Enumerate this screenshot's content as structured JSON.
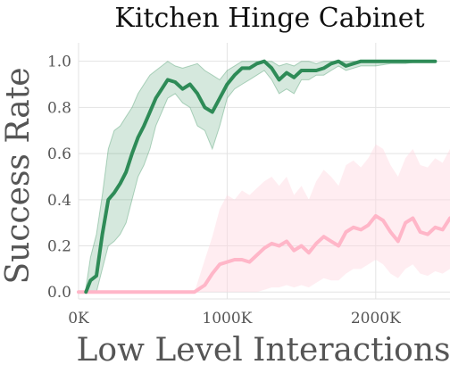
{
  "chart_data": {
    "type": "line",
    "title": "Kitchen Hinge Cabinet",
    "xlabel": "Low Level Interactions",
    "ylabel": "Success Rate",
    "xlim": [
      0,
      2500000
    ],
    "ylim": [
      -0.03,
      1.08
    ],
    "grid": true,
    "legend": "none",
    "x_ticks": [
      {
        "value": 0,
        "label": "0K"
      },
      {
        "value": 1000000,
        "label": "1000K"
      },
      {
        "value": 2000000,
        "label": "2000K"
      }
    ],
    "y_ticks": [
      {
        "value": 0.0,
        "label": "0.0"
      },
      {
        "value": 0.2,
        "label": "0.2"
      },
      {
        "value": 0.4,
        "label": "0.4"
      },
      {
        "value": 0.6,
        "label": "0.6"
      },
      {
        "value": 0.8,
        "label": "0.8"
      },
      {
        "value": 1.0,
        "label": "1.0"
      }
    ],
    "series": [
      {
        "color": "#2e8b57",
        "band_color": "#2e8b57",
        "x": [
          50000,
          80000,
          120000,
          160000,
          200000,
          240000,
          280000,
          320000,
          360000,
          400000,
          440000,
          480000,
          520000,
          560000,
          600000,
          650000,
          700000,
          750000,
          800000,
          850000,
          900000,
          950000,
          1000000,
          1050000,
          1100000,
          1150000,
          1200000,
          1250000,
          1300000,
          1350000,
          1400000,
          1450000,
          1500000,
          1550000,
          1600000,
          1650000,
          1700000,
          1750000,
          1800000,
          1900000,
          2000000,
          2100000,
          2200000,
          2300000,
          2400000
        ],
        "y": [
          0.0,
          0.05,
          0.07,
          0.25,
          0.4,
          0.43,
          0.47,
          0.52,
          0.6,
          0.67,
          0.72,
          0.78,
          0.84,
          0.88,
          0.92,
          0.91,
          0.88,
          0.9,
          0.86,
          0.8,
          0.78,
          0.84,
          0.9,
          0.94,
          0.97,
          0.97,
          0.99,
          1.0,
          0.97,
          0.92,
          0.95,
          0.93,
          0.96,
          0.96,
          0.96,
          0.97,
          0.99,
          1.0,
          0.98,
          1.0,
          1.0,
          1.0,
          1.0,
          1.0,
          1.0
        ],
        "y_lower": [
          0.0,
          0.0,
          0.0,
          0.1,
          0.2,
          0.22,
          0.25,
          0.3,
          0.4,
          0.5,
          0.55,
          0.62,
          0.72,
          0.78,
          0.84,
          0.86,
          0.82,
          0.8,
          0.72,
          0.7,
          0.62,
          0.72,
          0.84,
          0.88,
          0.9,
          0.92,
          0.94,
          0.96,
          0.92,
          0.86,
          0.88,
          0.86,
          0.92,
          0.92,
          0.94,
          0.94,
          0.96,
          0.98,
          0.96,
          0.98,
          0.98,
          0.99,
          0.99,
          1.0,
          1.0
        ],
        "y_upper": [
          0.02,
          0.15,
          0.25,
          0.42,
          0.62,
          0.7,
          0.72,
          0.76,
          0.8,
          0.86,
          0.9,
          0.94,
          0.96,
          0.98,
          1.0,
          0.98,
          0.97,
          0.98,
          0.99,
          0.96,
          0.94,
          0.92,
          0.96,
          0.98,
          1.0,
          1.0,
          1.0,
          1.0,
          1.0,
          0.98,
          0.99,
          0.98,
          1.0,
          1.0,
          0.99,
          1.0,
          1.0,
          1.0,
          1.0,
          1.0,
          1.0,
          1.0,
          1.0,
          1.0,
          1.0
        ]
      },
      {
        "color": "#ffb6c8",
        "band_color": "#ffd6df",
        "x": [
          0,
          200000,
          400000,
          600000,
          700000,
          780000,
          850000,
          900000,
          950000,
          1000000,
          1050000,
          1100000,
          1150000,
          1200000,
          1250000,
          1300000,
          1350000,
          1400000,
          1450000,
          1500000,
          1550000,
          1600000,
          1650000,
          1700000,
          1750000,
          1800000,
          1850000,
          1900000,
          1950000,
          2000000,
          2050000,
          2100000,
          2150000,
          2200000,
          2250000,
          2300000,
          2350000,
          2400000,
          2450000,
          2500000
        ],
        "y": [
          0.0,
          0.0,
          0.0,
          0.0,
          0.0,
          0.0,
          0.03,
          0.08,
          0.12,
          0.13,
          0.14,
          0.14,
          0.13,
          0.16,
          0.19,
          0.21,
          0.2,
          0.22,
          0.18,
          0.2,
          0.17,
          0.21,
          0.24,
          0.22,
          0.2,
          0.26,
          0.28,
          0.27,
          0.29,
          0.33,
          0.31,
          0.26,
          0.22,
          0.3,
          0.32,
          0.26,
          0.25,
          0.28,
          0.27,
          0.32
        ],
        "y_lower": [
          0.0,
          0.0,
          0.0,
          0.0,
          0.0,
          0.0,
          0.0,
          0.0,
          0.0,
          0.0,
          0.0,
          0.0,
          0.0,
          0.0,
          0.01,
          0.02,
          0.02,
          0.03,
          0.02,
          0.03,
          0.02,
          0.04,
          0.06,
          0.05,
          0.05,
          0.08,
          0.1,
          0.1,
          0.12,
          0.14,
          0.12,
          0.08,
          0.06,
          0.1,
          0.12,
          0.08,
          0.07,
          0.09,
          0.08,
          0.1
        ],
        "y_upper": [
          0.0,
          0.0,
          0.0,
          0.0,
          0.0,
          0.0,
          0.14,
          0.24,
          0.36,
          0.42,
          0.4,
          0.44,
          0.42,
          0.45,
          0.48,
          0.5,
          0.46,
          0.5,
          0.42,
          0.46,
          0.4,
          0.48,
          0.53,
          0.5,
          0.46,
          0.55,
          0.57,
          0.54,
          0.58,
          0.64,
          0.62,
          0.55,
          0.5,
          0.58,
          0.62,
          0.55,
          0.54,
          0.58,
          0.56,
          0.62
        ]
      }
    ]
  }
}
